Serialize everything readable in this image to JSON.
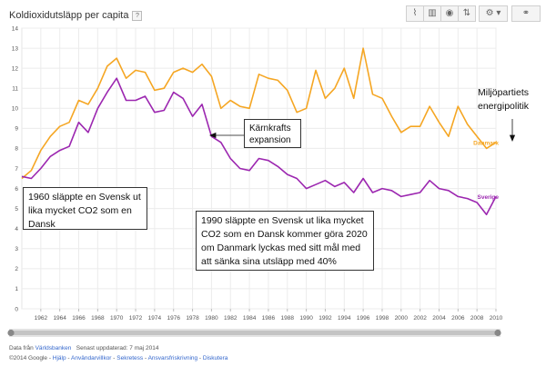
{
  "header": {
    "title": "Koldioxidutsläpp per capita",
    "help_glyph": "?"
  },
  "toolbar": {
    "buttons": [
      {
        "name": "line-chart-button",
        "glyph": "⌇"
      },
      {
        "name": "bar-chart-button",
        "glyph": "▥"
      },
      {
        "name": "map-button",
        "glyph": "◉"
      },
      {
        "name": "sort-button",
        "glyph": "⇅"
      },
      {
        "name": "settings-button",
        "glyph": "⚙ ▾"
      },
      {
        "name": "link-button",
        "glyph": "⚭"
      }
    ]
  },
  "chart_data": {
    "type": "line",
    "title": "Koldioxidutsläpp per capita",
    "xlabel": "",
    "ylabel": "",
    "xlim": [
      1960,
      2010
    ],
    "ylim": [
      0,
      14
    ],
    "yticks": [
      0,
      1,
      2,
      3,
      4,
      5,
      6,
      7,
      8,
      9,
      10,
      11,
      12,
      13,
      14
    ],
    "xticks": [
      1962,
      1964,
      1966,
      1968,
      1970,
      1972,
      1974,
      1976,
      1978,
      1980,
      1982,
      1984,
      1986,
      1988,
      1990,
      1992,
      1994,
      1996,
      1998,
      2000,
      2002,
      2004,
      2006,
      2008,
      2010
    ],
    "grid": true,
    "x": [
      1960,
      1961,
      1962,
      1963,
      1964,
      1965,
      1966,
      1967,
      1968,
      1969,
      1970,
      1971,
      1972,
      1973,
      1974,
      1975,
      1976,
      1977,
      1978,
      1979,
      1980,
      1981,
      1982,
      1983,
      1984,
      1985,
      1986,
      1987,
      1988,
      1989,
      1990,
      1991,
      1992,
      1993,
      1994,
      1995,
      1996,
      1997,
      1998,
      1999,
      2000,
      2001,
      2002,
      2003,
      2004,
      2005,
      2006,
      2007,
      2008,
      2009,
      2010
    ],
    "series": [
      {
        "name": "Danmark",
        "color": "#f5a623",
        "values": [
          6.5,
          6.9,
          7.9,
          8.6,
          9.1,
          9.3,
          10.4,
          10.2,
          11.0,
          12.1,
          12.5,
          11.5,
          11.9,
          11.8,
          10.9,
          11.0,
          11.8,
          12.0,
          11.8,
          12.2,
          11.6,
          10.0,
          10.4,
          10.1,
          10.0,
          11.7,
          11.5,
          11.4,
          10.9,
          9.8,
          10.0,
          11.9,
          10.5,
          11.0,
          12.0,
          10.5,
          13.0,
          10.7,
          10.5,
          9.6,
          8.8,
          9.1,
          9.1,
          10.1,
          9.3,
          8.6,
          10.1,
          9.2,
          8.6,
          8.0,
          8.3
        ]
      },
      {
        "name": "Sverige",
        "color": "#9c27b0",
        "values": [
          6.6,
          6.5,
          7.0,
          7.6,
          7.9,
          8.1,
          9.3,
          8.8,
          10.0,
          10.8,
          11.5,
          10.4,
          10.4,
          10.6,
          9.8,
          9.9,
          10.8,
          10.5,
          9.6,
          10.2,
          8.6,
          8.3,
          7.5,
          7.0,
          6.9,
          7.5,
          7.4,
          7.1,
          6.7,
          6.5,
          6.0,
          6.2,
          6.4,
          6.1,
          6.3,
          5.8,
          6.5,
          5.8,
          6.0,
          5.9,
          5.6,
          5.7,
          5.8,
          6.4,
          6.0,
          5.9,
          5.6,
          5.5,
          5.3,
          4.7,
          5.6
        ]
      }
    ]
  },
  "annotations": {
    "note_1960": "1960 släppte en Svensk ut lika mycket CO2 som en Dansk",
    "note_1990": "1990 släppte en Svensk ut lika mycket CO2 som en Dansk kommer göra 2020 om Danmark lyckas med sitt mål med att sänka sina utsläpp med 40%",
    "note_karnkraft": "Kärnkrafts expansion",
    "note_miljo": "Miljöpartiets energipolitik"
  },
  "footer": {
    "source_prefix": "Data från",
    "source_link": "Världsbanken",
    "updated": "Senast uppdaterad: 7 maj 2014",
    "copyright": "©2014 Google",
    "sep": " - ",
    "links": [
      "Hjälp",
      "Användarvillkor",
      "Sekretess",
      "Ansvarsfriskrivning",
      "Diskutera"
    ]
  }
}
